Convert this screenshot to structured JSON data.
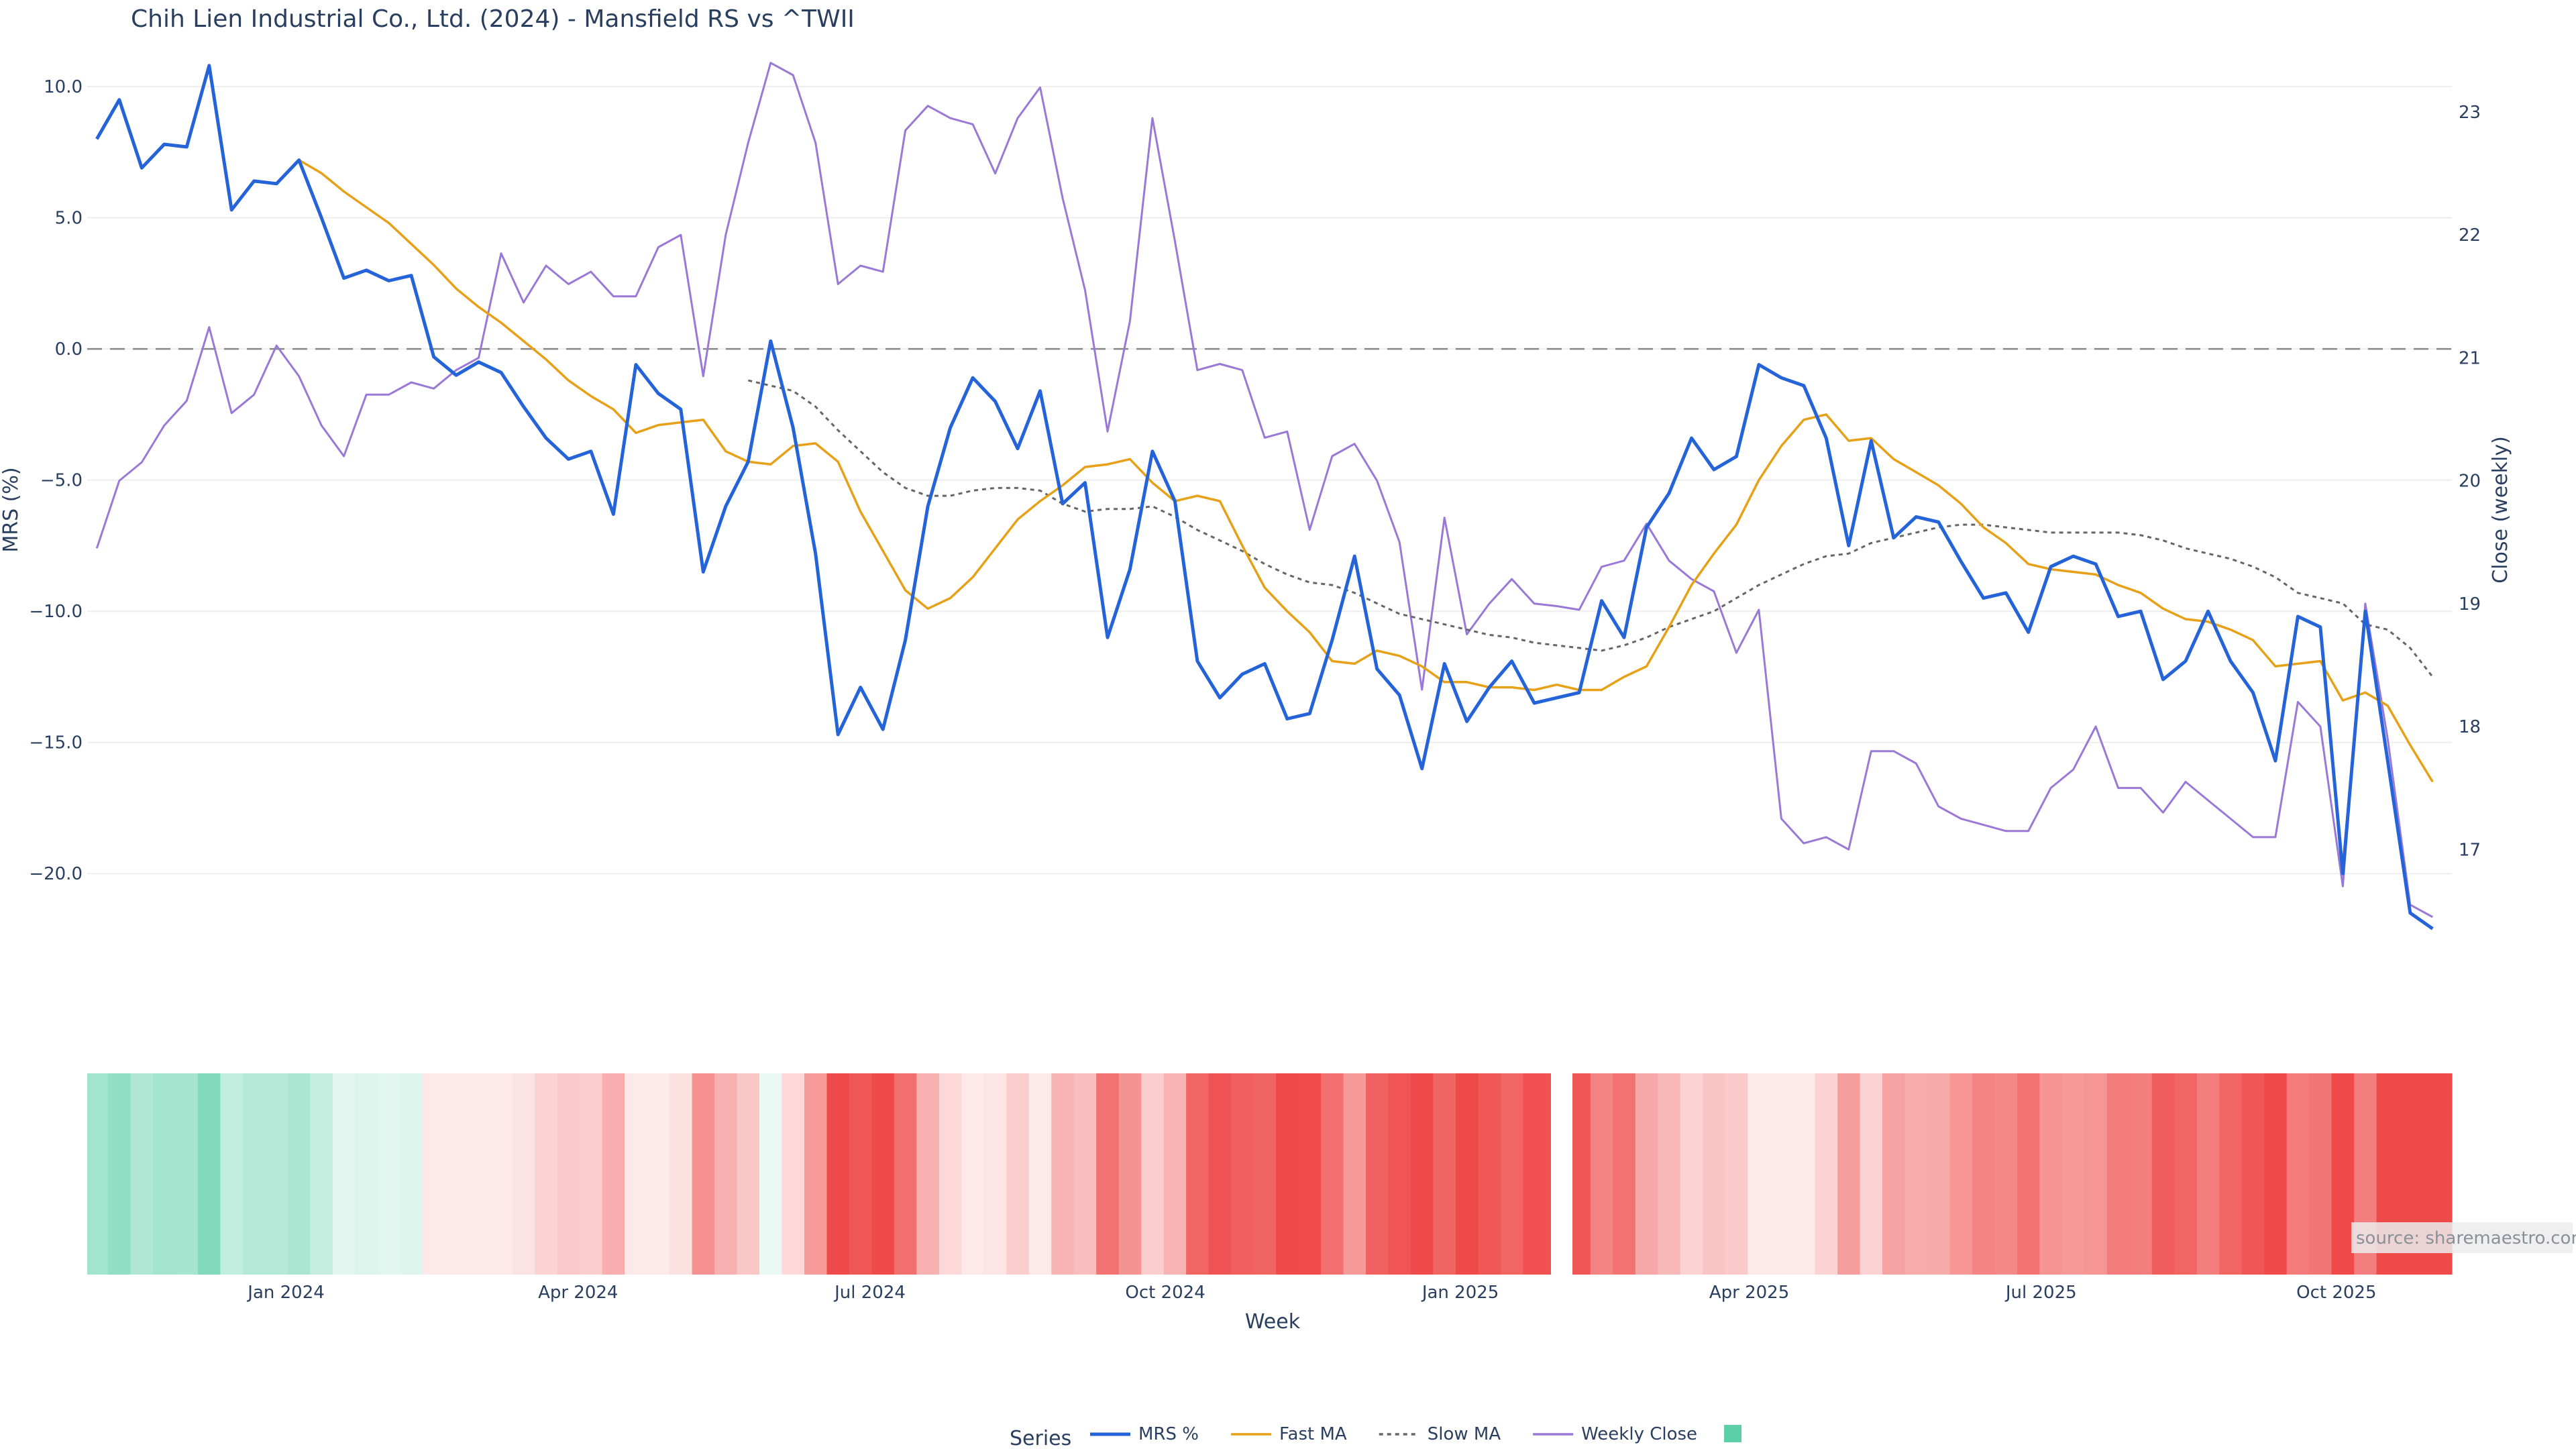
{
  "chart_data": {
    "type": "line",
    "title": "Chih Lien Industrial Co., Ltd. (2024) - Mansfield RS vs ^TWII",
    "xlabel": "Week",
    "ylabel": "MRS (%)",
    "y2label": "Close (weekly)",
    "ylim": [
      -22.5,
      11
    ],
    "yticks": [
      10,
      5,
      0,
      -5,
      -10,
      -15,
      -20
    ],
    "ytick_labels": [
      "10.0",
      "5.0",
      "0.0",
      "−5.0",
      "−10.0",
      "−15.0",
      "−20.0"
    ],
    "y2lim": [
      16.27,
      23.42
    ],
    "y2ticks": [
      23,
      22,
      21,
      20,
      19,
      18,
      17
    ],
    "y2tick_labels": [
      "23",
      "22",
      "21",
      "20",
      "19",
      "18",
      "17"
    ],
    "xlim": [
      "2023-10-31",
      "2025-11-06"
    ],
    "xticks": [
      "2024-01-01",
      "2024-04-01",
      "2024-07-01",
      "2024-10-01",
      "2025-01-01",
      "2025-04-01",
      "2025-07-01",
      "2025-10-01"
    ],
    "xtick_labels": [
      "Jan 2024",
      "Apr 2024",
      "Jul 2024",
      "Oct 2024",
      "Jan 2025",
      "Apr 2025",
      "Jul 2025",
      "Oct 2025"
    ],
    "zero_line": 0,
    "grid": true,
    "legend_position": "bottom",
    "legend_title": "Series",
    "x": [
      "2023-11-03",
      "2023-11-10",
      "2023-11-17",
      "2023-11-24",
      "2023-12-01",
      "2023-12-08",
      "2023-12-15",
      "2023-12-22",
      "2023-12-29",
      "2024-01-05",
      "2024-01-12",
      "2024-01-19",
      "2024-01-26",
      "2024-02-02",
      "2024-02-09",
      "2024-02-16",
      "2024-02-23",
      "2024-03-01",
      "2024-03-08",
      "2024-03-15",
      "2024-03-22",
      "2024-03-29",
      "2024-04-05",
      "2024-04-12",
      "2024-04-19",
      "2024-04-26",
      "2024-05-03",
      "2024-05-10",
      "2024-05-17",
      "2024-05-24",
      "2024-05-31",
      "2024-06-07",
      "2024-06-14",
      "2024-06-21",
      "2024-06-28",
      "2024-07-05",
      "2024-07-12",
      "2024-07-19",
      "2024-07-26",
      "2024-08-02",
      "2024-08-09",
      "2024-08-16",
      "2024-08-23",
      "2024-08-30",
      "2024-09-06",
      "2024-09-13",
      "2024-09-20",
      "2024-09-27",
      "2024-10-04",
      "2024-10-11",
      "2024-10-18",
      "2024-10-25",
      "2024-11-01",
      "2024-11-08",
      "2024-11-15",
      "2024-11-22",
      "2024-11-29",
      "2024-12-06",
      "2024-12-13",
      "2024-12-20",
      "2024-12-27",
      "2025-01-03",
      "2025-01-10",
      "2025-01-17",
      "2025-01-24",
      "2025-01-31",
      "2025-02-07",
      "2025-02-14",
      "2025-02-21",
      "2025-02-28",
      "2025-03-07",
      "2025-03-14",
      "2025-03-21",
      "2025-03-28",
      "2025-04-04",
      "2025-04-11",
      "2025-04-18",
      "2025-04-25",
      "2025-05-02",
      "2025-05-09",
      "2025-05-16",
      "2025-05-23",
      "2025-05-30",
      "2025-06-06",
      "2025-06-13",
      "2025-06-20",
      "2025-06-27",
      "2025-07-04",
      "2025-07-11",
      "2025-07-18",
      "2025-07-25",
      "2025-08-01",
      "2025-08-08",
      "2025-08-15",
      "2025-08-22",
      "2025-08-29",
      "2025-09-05",
      "2025-09-12",
      "2025-09-19",
      "2025-09-26",
      "2025-10-03",
      "2025-10-10",
      "2025-10-17",
      "2025-10-24",
      "2025-10-31"
    ],
    "series": [
      {
        "name": "MRS %",
        "axis": "left",
        "color": "#2563d9",
        "style": "solid",
        "values": [
          8.0,
          9.5,
          6.9,
          7.8,
          7.7,
          10.8,
          5.3,
          6.4,
          6.3,
          7.2,
          5.0,
          2.7,
          3.0,
          2.6,
          2.8,
          -0.3,
          -1.0,
          -0.5,
          -0.9,
          -2.2,
          -3.4,
          -4.2,
          -3.9,
          -6.3,
          -0.6,
          -1.7,
          -2.3,
          -8.5,
          -6.0,
          -4.3,
          0.3,
          -3.0,
          -7.8,
          -14.7,
          -12.9,
          -14.5,
          -11.1,
          -6.0,
          -3.0,
          -1.1,
          -2.0,
          -3.8,
          -1.6,
          -5.9,
          -5.1,
          -11.0,
          -8.4,
          -3.9,
          -5.8,
          -11.9,
          -13.3,
          -12.4,
          -12.0,
          -14.1,
          -13.9,
          -11.1,
          -7.9,
          -12.2,
          -13.2,
          -16.0,
          -12.0,
          -14.2,
          -12.9,
          -11.9,
          -13.5,
          -13.3,
          -13.1,
          -9.6,
          -11.0,
          -6.8,
          -5.5,
          -3.4,
          -4.6,
          -4.1,
          -0.6,
          -1.1,
          -1.4,
          -3.4,
          -7.5,
          -3.5,
          -7.2,
          -6.4,
          -6.6,
          -8.1,
          -9.5,
          -9.3,
          -10.8,
          -8.3,
          -7.9,
          -8.2,
          -10.2,
          -10.0,
          -12.6,
          -11.9,
          -10.0,
          -11.9,
          -13.1,
          -15.7,
          -10.2,
          -10.6,
          -20.0,
          -10.0,
          -15.7,
          -21.5,
          -22.1
        ]
      },
      {
        "name": "Fast MA",
        "axis": "left",
        "color": "#e6a118",
        "style": "solid",
        "values": [
          null,
          null,
          null,
          null,
          null,
          null,
          null,
          null,
          null,
          7.2,
          6.7,
          6.0,
          5.4,
          4.8,
          4.0,
          3.2,
          2.3,
          1.6,
          1.0,
          0.3,
          -0.4,
          -1.2,
          -1.8,
          -2.3,
          -3.2,
          -2.9,
          -2.8,
          -2.7,
          -3.9,
          -4.3,
          -4.4,
          -3.7,
          -3.6,
          -4.3,
          -6.2,
          -7.7,
          -9.2,
          -9.9,
          -9.5,
          -8.7,
          -7.6,
          -6.5,
          -5.8,
          -5.2,
          -4.5,
          -4.4,
          -4.2,
          -5.1,
          -5.8,
          -5.6,
          -5.8,
          -7.5,
          -9.1,
          -10.0,
          -10.8,
          -11.9,
          -12.0,
          -11.5,
          -11.7,
          -12.1,
          -12.7,
          -12.7,
          -12.9,
          -12.9,
          -13.0,
          -12.8,
          -13.0,
          -13.0,
          -12.5,
          -12.1,
          -10.6,
          -9.0,
          -7.8,
          -6.7,
          -5.0,
          -3.7,
          -2.7,
          -2.5,
          -3.5,
          -3.4,
          -4.2,
          -4.7,
          -5.2,
          -5.9,
          -6.8,
          -7.4,
          -8.2,
          -8.4,
          -8.5,
          -8.6,
          -9.0,
          -9.3,
          -9.9,
          -10.3,
          -10.4,
          -10.7,
          -11.1,
          -12.1,
          -12.0,
          -11.9,
          -13.4,
          -13.1,
          -13.6,
          -15.1,
          -16.5
        ]
      },
      {
        "name": "Slow MA",
        "axis": "left",
        "color": "#666666",
        "style": "dotted",
        "values": [
          null,
          null,
          null,
          null,
          null,
          null,
          null,
          null,
          null,
          null,
          null,
          null,
          null,
          null,
          null,
          null,
          null,
          null,
          null,
          null,
          null,
          null,
          null,
          null,
          null,
          null,
          null,
          null,
          null,
          -1.2,
          -1.4,
          -1.6,
          -2.2,
          -3.1,
          -3.9,
          -4.7,
          -5.3,
          -5.6,
          -5.6,
          -5.4,
          -5.3,
          -5.3,
          -5.4,
          -5.9,
          -6.2,
          -6.1,
          -6.1,
          -6.0,
          -6.4,
          -6.9,
          -7.3,
          -7.7,
          -8.2,
          -8.6,
          -8.9,
          -9.0,
          -9.3,
          -9.7,
          -10.1,
          -10.3,
          -10.5,
          -10.7,
          -10.9,
          -11.0,
          -11.2,
          -11.3,
          -11.4,
          -11.5,
          -11.3,
          -11.0,
          -10.6,
          -10.3,
          -10.0,
          -9.5,
          -9.0,
          -8.6,
          -8.2,
          -7.9,
          -7.8,
          -7.4,
          -7.2,
          -7.0,
          -6.8,
          -6.7,
          -6.7,
          -6.8,
          -6.9,
          -7.0,
          -7.0,
          -7.0,
          -7.0,
          -7.1,
          -7.3,
          -7.6,
          -7.8,
          -8.0,
          -8.3,
          -8.7,
          -9.3,
          -9.5,
          -9.7,
          -10.5,
          -10.7,
          -11.4,
          -12.5
        ]
      },
      {
        "name": "Weekly Close",
        "axis": "right",
        "color": "#9a79d6",
        "style": "solid",
        "values": [
          19.45,
          20.0,
          20.15,
          20.45,
          20.65,
          21.25,
          20.55,
          20.7,
          21.1,
          20.85,
          20.45,
          20.2,
          20.7,
          20.7,
          20.8,
          20.75,
          20.9,
          21.0,
          21.85,
          21.45,
          21.75,
          21.6,
          21.7,
          21.5,
          21.5,
          21.9,
          22.0,
          20.85,
          22.0,
          22.75,
          23.4,
          23.3,
          22.75,
          21.6,
          21.75,
          21.7,
          22.85,
          23.05,
          22.95,
          22.9,
          22.5,
          22.95,
          23.2,
          22.3,
          21.55,
          20.4,
          21.3,
          22.95,
          21.95,
          20.9,
          20.95,
          20.9,
          20.35,
          20.4,
          19.6,
          20.2,
          20.3,
          20.0,
          19.5,
          18.3,
          19.7,
          18.75,
          19.0,
          19.2,
          19.0,
          18.98,
          18.95,
          19.3,
          19.35,
          19.65,
          19.35,
          19.2,
          19.1,
          18.6,
          18.95,
          17.25,
          17.05,
          17.1,
          17.0,
          17.8,
          17.8,
          17.7,
          17.35,
          17.25,
          17.2,
          17.15,
          17.15,
          17.5,
          17.65,
          18.0,
          17.5,
          17.5,
          17.3,
          17.55,
          17.4,
          17.25,
          17.1,
          17.1,
          18.2,
          18.0,
          16.7,
          19.0,
          17.9,
          16.55,
          16.45
        ]
      }
    ],
    "heatmap_strip": {
      "description_series": "MRS %",
      "positive_color": "#5ccfa8",
      "negative_color": "#ef4a4a",
      "note": "Colour intensity per week scales with MRS %"
    },
    "annotation": "source: sharemaestro.com"
  }
}
